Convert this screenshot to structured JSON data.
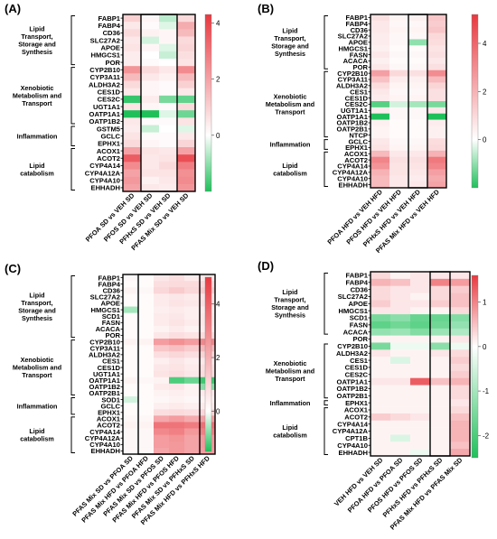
{
  "colors": {
    "high": "#e8383f",
    "mid": "#ffffff",
    "low": "#1fc05a",
    "border": "#000000"
  },
  "chart_data": [
    {
      "type": "heatmap",
      "panel_label": "(A)",
      "rows": [
        "FABP1",
        "FABP4",
        "CD36",
        "SLC27A2",
        "APOE",
        "HMGCS1",
        "POR",
        "CYP2B10",
        "CYP3A11",
        "ALDH3A2",
        "CES1D",
        "CES2C",
        "UGT1A1",
        "OATP1A1",
        "OATP1B2",
        "GSTM5",
        "GCLC",
        "EPHX1",
        "ACOX1",
        "ACOT2",
        "CYP4A14",
        "CYP4A12A",
        "CYP4A10",
        "EHHADH"
      ],
      "columns": [
        "PFOA SD vs VEH SD",
        "PFOS SD vs VEH SD",
        "PFHxS SD vs VEH SD",
        "PFAS Mix SD vs VEH SD"
      ],
      "groups": [
        {
          "label": "Lipid Transport, Storage and Synthesis",
          "start": 0,
          "end": 6
        },
        {
          "label": "Xenobiotic Metabolism and Transport",
          "start": 7,
          "end": 14
        },
        {
          "label": "Inflammation",
          "start": 15,
          "end": 17
        },
        {
          "label": "Lipid catabolism",
          "start": 18,
          "end": 23
        }
      ],
      "values": [
        [
          1.0,
          0.2,
          -0.6,
          0.8
        ],
        [
          0.5,
          0.1,
          -0.3,
          1.8
        ],
        [
          0.8,
          0.3,
          0.2,
          1.5
        ],
        [
          0.5,
          -0.4,
          0.2,
          0.8
        ],
        [
          0.6,
          0.2,
          -0.3,
          0.9
        ],
        [
          0.4,
          0.0,
          -0.5,
          0.7
        ],
        [
          0.4,
          0.1,
          0.0,
          0.6
        ],
        [
          2.3,
          0.8,
          0.5,
          2.5
        ],
        [
          1.5,
          0.5,
          0.3,
          1.5
        ],
        [
          0.8,
          0.2,
          0.1,
          1.0
        ],
        [
          0.5,
          0.2,
          0.1,
          0.5
        ],
        [
          -1.8,
          0.4,
          -1.2,
          -1.4
        ],
        [
          0.6,
          0.2,
          0.1,
          0.8
        ],
        [
          -2.2,
          -2.3,
          -0.3,
          -1.3
        ],
        [
          0.5,
          0.1,
          0.1,
          0.6
        ],
        [
          0.4,
          -0.5,
          0.0,
          -0.3
        ],
        [
          0.6,
          0.1,
          0.1,
          0.5
        ],
        [
          0.8,
          0.2,
          0.1,
          0.9
        ],
        [
          2.0,
          0.6,
          0.5,
          2.0
        ],
        [
          3.5,
          0.5,
          0.6,
          3.8
        ],
        [
          2.5,
          0.5,
          0.8,
          2.8
        ],
        [
          2.0,
          0.6,
          0.6,
          2.4
        ],
        [
          2.2,
          0.3,
          0.5,
          2.5
        ],
        [
          2.0,
          0.5,
          0.4,
          2.3
        ]
      ],
      "colorbar": {
        "min": -2,
        "max": 4.3,
        "ticks": [
          0,
          2,
          4
        ]
      }
    },
    {
      "type": "heatmap",
      "panel_label": "(B)",
      "rows": [
        "FABP1",
        "FABP4",
        "CD36",
        "SLC27A2",
        "APOE",
        "HMGCS1",
        "FASN",
        "ACACA",
        "POR",
        "CYP2B10",
        "CYP3A11",
        "ALDH3A2",
        "CES1",
        "CES1D",
        "CES2C",
        "UGT1A1",
        "OATP1A1",
        "OATP1B2",
        "OATP2B1",
        "NTCP",
        "GCLC",
        "EPHX1",
        "ACOX1",
        "ACOT2",
        "CYP4A14",
        "CYP4A12A",
        "CYP4A10",
        "EHHADH"
      ],
      "columns": [
        "PFOA HFD vs VEH HFD",
        "PFOS HFD vs VEH HFD",
        "PFHxS HFD vs VEH HFD",
        "PFAS Mix HFD vs VEH HFD"
      ],
      "groups": [
        {
          "label": "Lipid Transport, Storage and Synthesis",
          "start": 0,
          "end": 8
        },
        {
          "label": "Xenobiotic Metabolism and Transport",
          "start": 9,
          "end": 19
        },
        {
          "label": "Inflammation",
          "start": 20,
          "end": 21
        },
        {
          "label": "Lipid catabolism",
          "start": 22,
          "end": 27
        }
      ],
      "values": [
        [
          0.8,
          0.3,
          0.4,
          1.5
        ],
        [
          0.6,
          0.2,
          0.2,
          1.3
        ],
        [
          0.6,
          0.3,
          0.3,
          1.5
        ],
        [
          0.5,
          0.2,
          0.2,
          1.0
        ],
        [
          0.5,
          0.2,
          -1.0,
          0.9
        ],
        [
          0.4,
          0.1,
          0.1,
          0.7
        ],
        [
          0.6,
          0.2,
          0.2,
          0.8
        ],
        [
          0.4,
          0.1,
          0.1,
          0.6
        ],
        [
          0.6,
          0.2,
          0.2,
          0.8
        ],
        [
          2.5,
          1.0,
          0.8,
          3.0
        ],
        [
          1.6,
          0.5,
          0.4,
          1.8
        ],
        [
          0.9,
          0.3,
          0.3,
          1.1
        ],
        [
          0.6,
          0.2,
          0.2,
          0.8
        ],
        [
          0.5,
          0.3,
          0.3,
          0.8
        ],
        [
          -1.5,
          -0.4,
          -0.8,
          -1.2
        ],
        [
          0.5,
          0.2,
          0.2,
          0.6
        ],
        [
          -2.0,
          0.2,
          0.2,
          -2.0
        ],
        [
          0.4,
          0.1,
          0.1,
          0.5
        ],
        [
          0.3,
          0.1,
          0.1,
          0.4
        ],
        [
          0.3,
          0.1,
          0.1,
          0.4
        ],
        [
          0.6,
          0.2,
          0.2,
          0.9
        ],
        [
          0.7,
          0.3,
          0.3,
          1.0
        ],
        [
          1.8,
          0.6,
          0.6,
          2.0
        ],
        [
          3.2,
          0.8,
          0.8,
          3.5
        ],
        [
          2.8,
          0.7,
          0.7,
          3.2
        ],
        [
          2.0,
          0.7,
          0.6,
          2.5
        ],
        [
          1.8,
          0.6,
          0.5,
          2.2
        ],
        [
          1.8,
          0.6,
          0.6,
          2.4
        ]
      ],
      "colorbar": {
        "min": -2,
        "max": 5.2,
        "ticks": [
          0,
          2,
          4
        ]
      }
    },
    {
      "type": "heatmap",
      "panel_label": "(C)",
      "rows": [
        "FABP1",
        "FABP4",
        "CD36",
        "SLC27A2",
        "APOE",
        "HMGCS1",
        "SCD1",
        "FASN",
        "ACACA",
        "POR",
        "CYP2B10",
        "CYP3A11",
        "ALDH3A2",
        "CES1",
        "CES1D",
        "UGT1A1",
        "OATP1A1",
        "OATP1B2",
        "OATP2B1",
        "SOD1",
        "GCLC",
        "EPHX1",
        "ACOX1",
        "ACOT2",
        "CYP4A14",
        "CYP4A12A",
        "CYP4A10",
        "EHHADH"
      ],
      "columns": [
        "PFAS Mix SD vs PFOA SD",
        "PFAS Mix HFD vs PFOA HFD",
        "PFAS Mix SD vs PFOS SD",
        "PFAS Mix HFD vs PFOS HFD",
        "PFAS Mix SD vs PFHxS SD",
        "PFAS Mix HFD vs PFHxS HFD"
      ],
      "groups": [
        {
          "label": "Lipid Transport, Storage and Synthesis",
          "start": 0,
          "end": 9
        },
        {
          "label": "Xenobiotic Metabolism and Transport",
          "start": 10,
          "end": 18
        },
        {
          "label": "Inflammation",
          "start": 19,
          "end": 21
        },
        {
          "label": "Lipid catabolism",
          "start": 22,
          "end": 27
        }
      ],
      "values": [
        [
          0.2,
          0.1,
          0.6,
          0.8,
          0.5,
          0.6
        ],
        [
          0.1,
          0.1,
          0.8,
          0.9,
          0.9,
          1.0
        ],
        [
          0.3,
          0.2,
          1.0,
          1.3,
          1.0,
          1.3
        ],
        [
          0.1,
          0.1,
          0.5,
          0.6,
          0.5,
          0.7
        ],
        [
          0.1,
          0.1,
          0.5,
          0.7,
          0.6,
          0.8
        ],
        [
          -0.6,
          0.1,
          0.4,
          0.5,
          0.4,
          0.5
        ],
        [
          0.1,
          0.1,
          0.5,
          0.6,
          0.4,
          0.6
        ],
        [
          0.1,
          0.1,
          0.5,
          0.7,
          0.5,
          0.6
        ],
        [
          0.1,
          0.1,
          0.3,
          0.5,
          0.3,
          0.5
        ],
        [
          0.1,
          0.1,
          0.6,
          0.8,
          0.7,
          0.9
        ],
        [
          0.3,
          0.3,
          2.5,
          2.8,
          2.5,
          3.0
        ],
        [
          0.1,
          0.1,
          1.4,
          1.6,
          1.3,
          1.8
        ],
        [
          0.1,
          0.1,
          0.8,
          1.0,
          0.8,
          1.1
        ],
        [
          0.1,
          0.1,
          0.4,
          0.6,
          0.4,
          0.6
        ],
        [
          0.1,
          0.1,
          0.6,
          0.7,
          0.5,
          0.8
        ],
        [
          0.1,
          0.1,
          0.7,
          0.8,
          0.6,
          0.9
        ],
        [
          0.3,
          0.2,
          0.3,
          -1.2,
          -1.0,
          -1.3
        ],
        [
          0.1,
          0.1,
          0.5,
          0.6,
          0.3,
          -0.8
        ],
        [
          0.1,
          0.1,
          0.3,
          0.4,
          0.3,
          0.5
        ],
        [
          -0.3,
          0.1,
          0.2,
          0.3,
          0.2,
          0.3
        ],
        [
          0.1,
          0.1,
          0.4,
          0.5,
          0.4,
          0.5
        ],
        [
          0.1,
          0.1,
          0.8,
          0.9,
          0.8,
          1.0
        ],
        [
          0.2,
          0.2,
          2.2,
          2.5,
          2.1,
          2.4
        ],
        [
          0.3,
          0.3,
          3.5,
          3.5,
          3.3,
          3.6
        ],
        [
          0.2,
          0.2,
          3.0,
          3.2,
          2.6,
          3.2
        ],
        [
          0.2,
          0.2,
          2.5,
          2.7,
          2.3,
          2.6
        ],
        [
          0.2,
          0.2,
          2.5,
          2.6,
          2.3,
          2.6
        ],
        [
          0.2,
          0.2,
          2.3,
          2.6,
          2.3,
          2.5
        ]
      ],
      "colorbar": {
        "min": -1.5,
        "max": 5.0,
        "ticks": [
          0,
          2,
          4
        ]
      }
    },
    {
      "type": "heatmap",
      "panel_label": "(D)",
      "rows": [
        "FABP1",
        "FABP4",
        "CD36",
        "SLC27A2",
        "APOE",
        "HMGCS1",
        "SCD1",
        "FASN",
        "ACACA",
        "POR",
        "CYP2B10",
        "ALDH3A2",
        "CES1",
        "CES1D",
        "CES2C",
        "OATP1A1",
        "OATP1B2",
        "OATP2B1",
        "EPHX1",
        "ACOX1",
        "ACOT2",
        "CYP4A14",
        "CYP4A12A",
        "CPT1B",
        "CYP4A10",
        "EHHADH"
      ],
      "columns": [
        "VEH HFD vs VEH SD",
        "PFOA HFD vs PFOA SD",
        "PFOS HFD vs PFOS SD",
        "PFHxS HFD vs PFHxS SD",
        "PFAS Mix HFD vs PFAS Mix SD"
      ],
      "groups": [
        {
          "label": "Lipid Transport, Storage and Synthesis",
          "start": 0,
          "end": 8
        },
        {
          "label": "Xenobiotic Metabolism and Transport",
          "start": 10,
          "end": 17
        },
        {
          "label": "Inflammation",
          "start": 18,
          "end": 18
        },
        {
          "label": "Lipid catabolism",
          "start": 19,
          "end": 25
        }
      ],
      "values": [
        [
          0.3,
          0.1,
          0.2,
          0.2,
          0.2
        ],
        [
          0.6,
          0.5,
          0.2,
          1.0,
          0.8
        ],
        [
          0.3,
          0.2,
          0.2,
          0.3,
          0.4
        ],
        [
          0.3,
          0.2,
          0.1,
          0.3,
          0.5
        ],
        [
          0.4,
          0.2,
          0.2,
          0.4,
          0.5
        ],
        [
          0.2,
          0.2,
          0.1,
          0.1,
          0.3
        ],
        [
          -1.5,
          -1.3,
          -1.7,
          -1.7,
          -1.4
        ],
        [
          -1.8,
          -1.6,
          -1.8,
          -1.6,
          -1.2
        ],
        [
          -1.2,
          -1.1,
          -1.4,
          -1.1,
          -0.9
        ],
        [
          0.1,
          0.1,
          0.1,
          0.1,
          0.2
        ],
        [
          -1.5,
          -0.2,
          -0.2,
          -1.3,
          -0.2
        ],
        [
          0.2,
          0.1,
          0.1,
          0.2,
          0.3
        ],
        [
          0.1,
          -0.4,
          0.1,
          0.1,
          0.4
        ],
        [
          0.1,
          0.1,
          0.1,
          0.1,
          0.3
        ],
        [
          0.1,
          0.1,
          0.1,
          0.1,
          0.4
        ],
        [
          0.2,
          0.2,
          1.3,
          0.5,
          0.6
        ],
        [
          0.1,
          0.1,
          0.1,
          0.1,
          0.3
        ],
        [
          0.1,
          0.1,
          0.1,
          0.1,
          0.3
        ],
        [
          0.1,
          0.1,
          0.1,
          0.1,
          0.2
        ],
        [
          0.1,
          0.1,
          0.1,
          0.1,
          0.3
        ],
        [
          0.4,
          0.3,
          0.2,
          0.1,
          0.5
        ],
        [
          0.1,
          0.1,
          0.1,
          0.1,
          0.6
        ],
        [
          0.1,
          0.1,
          0.1,
          0.1,
          0.6
        ],
        [
          0.1,
          -0.4,
          0.1,
          0.1,
          0.6
        ],
        [
          0.1,
          0.1,
          0.1,
          0.1,
          0.5
        ],
        [
          0.1,
          0.1,
          -0.2,
          0.1,
          0.7
        ]
      ],
      "colorbar": {
        "min": -2.5,
        "max": 1.6,
        "ticks": [
          -2,
          -1,
          0,
          1
        ]
      }
    }
  ]
}
